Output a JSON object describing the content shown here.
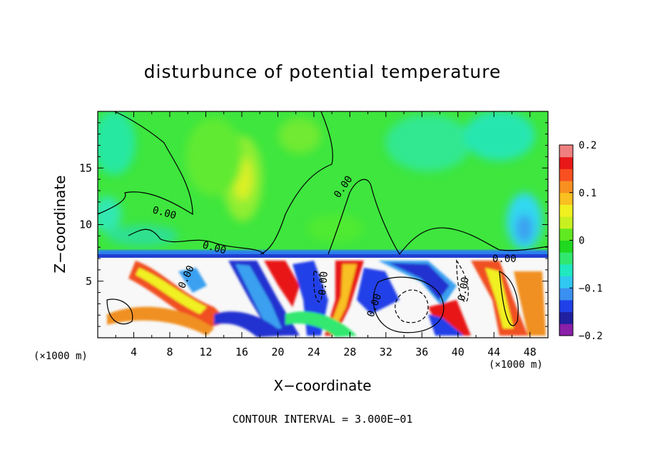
{
  "chart_data": {
    "type": "heatmap",
    "title": "disturbunce of potential temperature",
    "xlabel": "X−coordinate",
    "ylabel": "Z−coordinate",
    "x_unit_label": "(×1000 m)",
    "footnote": "CONTOUR INTERVAL = 3.000E−01",
    "xlim": [
      0,
      50
    ],
    "ylim": [
      0,
      20
    ],
    "x_ticks": [
      4,
      8,
      12,
      16,
      20,
      24,
      28,
      32,
      36,
      40,
      44,
      48
    ],
    "y_ticks": [
      5,
      10,
      15
    ],
    "colorbar": {
      "range": [
        -0.2,
        0.2
      ],
      "tick_values": [
        0.2,
        0.1,
        0,
        -0.1,
        -0.2
      ],
      "tick_labels": [
        "0.2",
        "0.1",
        "0",
        "−0.1",
        "−0.2"
      ],
      "colors": [
        "#8a1fa8",
        "#2020a0",
        "#2040e8",
        "#3a90f0",
        "#30c8f0",
        "#20e8c0",
        "#30e870",
        "#20d820",
        "#60e820",
        "#c8f020",
        "#f0f020",
        "#f8c020",
        "#f89020",
        "#f85020",
        "#e81818",
        "#f08080"
      ]
    },
    "contour_labels": [
      "0.00",
      "0.00",
      "0.00",
      "0.00",
      "0.00",
      "0.00",
      "0.00",
      "0.00"
    ]
  }
}
